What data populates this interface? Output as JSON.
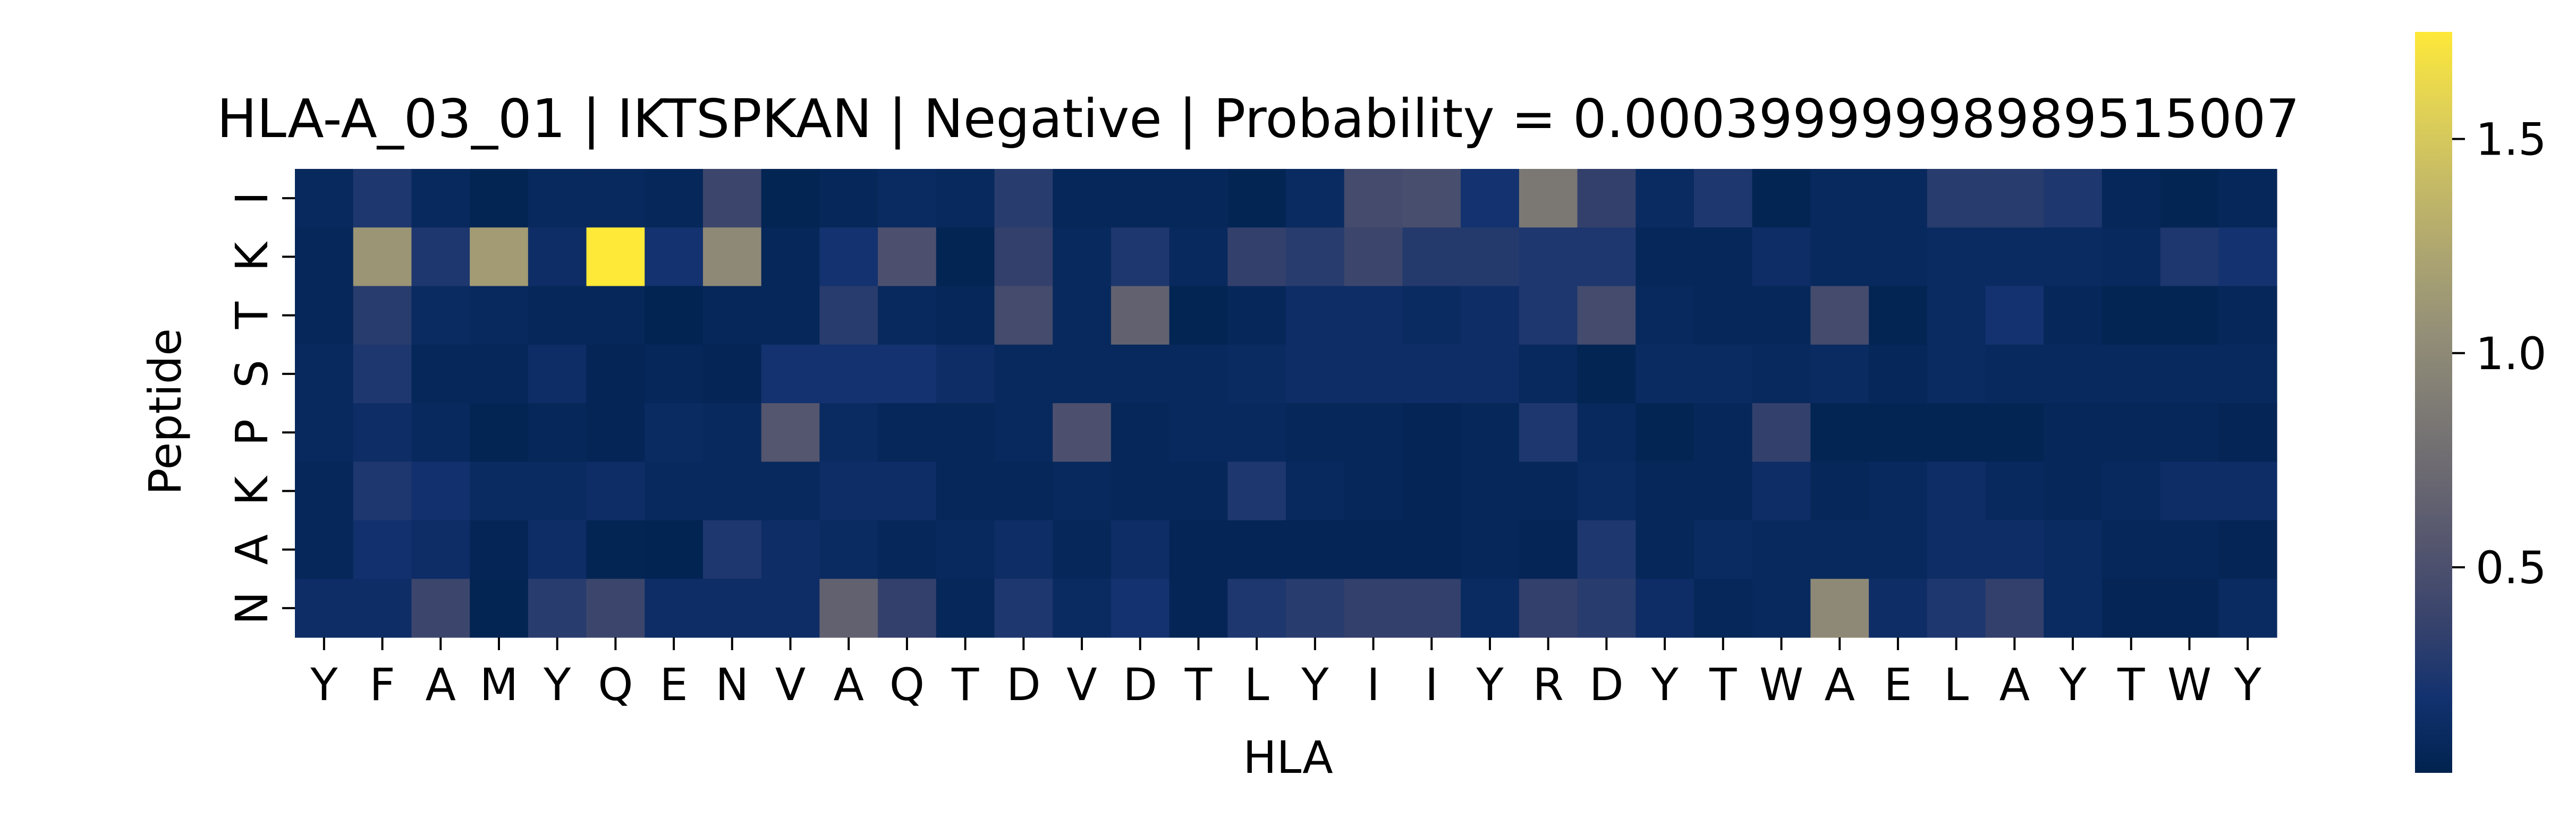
{
  "chart_data": {
    "type": "heatmap",
    "title": "HLA-A_03_01 | IKTSPKAN | Negative | Probability = 0.00039999998989515007",
    "xlabel": "HLA",
    "ylabel": "Peptide",
    "x_categories": [
      "Y",
      "F",
      "A",
      "M",
      "Y",
      "Q",
      "E",
      "N",
      "V",
      "A",
      "Q",
      "T",
      "D",
      "V",
      "D",
      "T",
      "L",
      "Y",
      "I",
      "I",
      "Y",
      "R",
      "D",
      "Y",
      "T",
      "W",
      "A",
      "E",
      "L",
      "A",
      "Y",
      "T",
      "W",
      "Y"
    ],
    "y_categories": [
      "I",
      "K",
      "T",
      "S",
      "P",
      "K",
      "A",
      "N"
    ],
    "colormap": "cividis",
    "colorbar": {
      "vmin": 0.02,
      "vmax": 1.75,
      "ticks": [
        0.5,
        1.0,
        1.5
      ],
      "tick_labels": [
        "0.5",
        "1.0",
        "1.5"
      ],
      "highest_tick_label_printed": "1.75"
    },
    "values": [
      [
        0.1,
        0.25,
        0.1,
        0.05,
        0.1,
        0.1,
        0.08,
        0.4,
        0.05,
        0.08,
        0.12,
        0.1,
        0.3,
        0.08,
        0.08,
        0.08,
        0.05,
        0.12,
        0.45,
        0.48,
        0.2,
        0.85,
        0.35,
        0.12,
        0.25,
        0.05,
        0.1,
        0.1,
        0.3,
        0.3,
        0.25,
        0.08,
        0.05,
        0.08
      ],
      [
        0.08,
        1.1,
        0.25,
        1.15,
        0.15,
        1.75,
        0.2,
        1.0,
        0.08,
        0.2,
        0.5,
        0.05,
        0.35,
        0.1,
        0.25,
        0.1,
        0.35,
        0.3,
        0.4,
        0.28,
        0.28,
        0.25,
        0.25,
        0.08,
        0.08,
        0.15,
        0.1,
        0.1,
        0.12,
        0.12,
        0.12,
        0.1,
        0.25,
        0.2
      ],
      [
        0.08,
        0.3,
        0.12,
        0.1,
        0.08,
        0.08,
        0.04,
        0.08,
        0.08,
        0.3,
        0.1,
        0.08,
        0.45,
        0.1,
        0.65,
        0.05,
        0.08,
        0.15,
        0.15,
        0.12,
        0.15,
        0.25,
        0.45,
        0.1,
        0.08,
        0.08,
        0.45,
        0.05,
        0.12,
        0.2,
        0.08,
        0.05,
        0.05,
        0.08
      ],
      [
        0.1,
        0.25,
        0.08,
        0.08,
        0.15,
        0.06,
        0.08,
        0.06,
        0.2,
        0.2,
        0.2,
        0.15,
        0.1,
        0.1,
        0.1,
        0.1,
        0.12,
        0.15,
        0.15,
        0.15,
        0.15,
        0.1,
        0.05,
        0.12,
        0.12,
        0.1,
        0.12,
        0.08,
        0.12,
        0.1,
        0.1,
        0.1,
        0.1,
        0.1
      ],
      [
        0.1,
        0.15,
        0.1,
        0.05,
        0.08,
        0.06,
        0.12,
        0.1,
        0.55,
        0.12,
        0.08,
        0.08,
        0.1,
        0.5,
        0.08,
        0.1,
        0.1,
        0.08,
        0.08,
        0.06,
        0.08,
        0.25,
        0.1,
        0.05,
        0.08,
        0.35,
        0.05,
        0.05,
        0.05,
        0.05,
        0.08,
        0.08,
        0.08,
        0.06
      ],
      [
        0.08,
        0.25,
        0.18,
        0.12,
        0.12,
        0.15,
        0.1,
        0.1,
        0.1,
        0.15,
        0.15,
        0.08,
        0.08,
        0.1,
        0.08,
        0.08,
        0.25,
        0.1,
        0.08,
        0.06,
        0.08,
        0.08,
        0.12,
        0.08,
        0.08,
        0.15,
        0.08,
        0.1,
        0.15,
        0.1,
        0.08,
        0.1,
        0.15,
        0.15
      ],
      [
        0.08,
        0.18,
        0.15,
        0.06,
        0.15,
        0.05,
        0.04,
        0.25,
        0.15,
        0.12,
        0.08,
        0.1,
        0.15,
        0.08,
        0.15,
        0.06,
        0.06,
        0.06,
        0.06,
        0.06,
        0.08,
        0.06,
        0.25,
        0.08,
        0.12,
        0.1,
        0.1,
        0.1,
        0.15,
        0.15,
        0.12,
        0.08,
        0.08,
        0.06
      ],
      [
        0.15,
        0.15,
        0.4,
        0.05,
        0.3,
        0.4,
        0.15,
        0.15,
        0.15,
        0.65,
        0.35,
        0.08,
        0.25,
        0.12,
        0.2,
        0.06,
        0.25,
        0.3,
        0.35,
        0.35,
        0.12,
        0.35,
        0.3,
        0.15,
        0.08,
        0.1,
        1.0,
        0.15,
        0.25,
        0.35,
        0.12,
        0.06,
        0.06,
        0.12
      ]
    ]
  }
}
